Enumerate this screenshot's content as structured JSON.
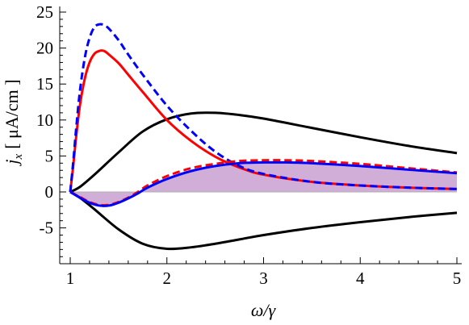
{
  "chart_data": {
    "type": "line",
    "xlabel": "ω/γ",
    "ylabel": "j_x [ μA/cm ]",
    "ylabel_parts": {
      "symbol": "j",
      "subscript": "x",
      "unit": "[ μA/cm ]"
    },
    "xlim": [
      0.9,
      5.05
    ],
    "ylim": [
      -9.5,
      25
    ],
    "x_ticks": [
      1,
      2,
      3,
      4,
      5
    ],
    "x_tick_labels": [
      "1",
      "2",
      "3",
      "4",
      "5"
    ],
    "y_ticks": [
      -5,
      0,
      5,
      10,
      15,
      20,
      25
    ],
    "y_tick_labels": [
      "-5",
      "0",
      "5",
      "10",
      "15",
      "20",
      "25"
    ],
    "grid": false,
    "legend": "none",
    "zero_line": true,
    "shaded_region": {
      "series_index": 5,
      "baseline": 0,
      "color": "#c8a0d0"
    },
    "series": [
      {
        "color": "#000000",
        "style": "solid",
        "x": [
          1,
          1.1,
          1.25,
          1.5,
          1.75,
          2.0,
          2.25,
          2.5,
          2.75,
          3.0,
          3.5,
          4.0,
          4.5,
          5.0
        ],
        "y": [
          0,
          0.7,
          2.4,
          5.5,
          8.4,
          10.1,
          10.9,
          11.0,
          10.7,
          10.2,
          8.9,
          7.6,
          6.4,
          5.4
        ]
      },
      {
        "color": "#000000",
        "style": "solid",
        "x": [
          1,
          1.1,
          1.25,
          1.5,
          1.75,
          2.0,
          2.25,
          2.5,
          2.75,
          3.0,
          3.5,
          4.0,
          4.5,
          5.0
        ],
        "y": [
          0,
          -0.8,
          -2.4,
          -5.2,
          -7.2,
          -7.9,
          -7.7,
          -7.2,
          -6.6,
          -6.0,
          -5.0,
          -4.2,
          -3.5,
          -2.9
        ]
      },
      {
        "color": "#ff0000",
        "style": "solid",
        "x": [
          1,
          1.03,
          1.06,
          1.1,
          1.15,
          1.2,
          1.25,
          1.3,
          1.35,
          1.4,
          1.5,
          1.6,
          1.75,
          2.0,
          2.25,
          2.5,
          2.75,
          3.0,
          3.5,
          4.0,
          4.5,
          5.0
        ],
        "y": [
          0,
          3.5,
          7.5,
          12.0,
          15.7,
          18.0,
          19.2,
          19.6,
          19.6,
          19.1,
          17.9,
          16.3,
          13.9,
          10.0,
          7.1,
          4.9,
          3.4,
          2.4,
          1.4,
          0.9,
          0.6,
          0.4
        ]
      },
      {
        "color": "#0000ff",
        "style": "dashed",
        "x": [
          1,
          1.03,
          1.06,
          1.1,
          1.15,
          1.2,
          1.25,
          1.3,
          1.35,
          1.4,
          1.5,
          1.6,
          1.75,
          2.0,
          2.25,
          2.5,
          2.75,
          3.0,
          3.5,
          4.0,
          4.5,
          5.0
        ],
        "y": [
          0,
          4.0,
          8.6,
          14.0,
          18.6,
          21.4,
          22.9,
          23.3,
          23.2,
          22.7,
          21.1,
          19.1,
          16.3,
          12.0,
          8.5,
          5.6,
          3.6,
          2.5,
          1.4,
          0.9,
          0.6,
          0.4
        ]
      },
      {
        "color": "#ff0000",
        "style": "dashed",
        "x": [
          1,
          1.1,
          1.2,
          1.3,
          1.4,
          1.5,
          1.6,
          1.7,
          1.8,
          2.0,
          2.25,
          2.5,
          2.75,
          3.0,
          3.25,
          3.5,
          4.0,
          4.5,
          5.0
        ],
        "y": [
          0,
          -0.7,
          -1.4,
          -1.8,
          -1.8,
          -1.4,
          -0.8,
          0.0,
          0.9,
          2.2,
          3.3,
          3.9,
          4.3,
          4.4,
          4.4,
          4.3,
          3.9,
          3.3,
          2.7
        ]
      },
      {
        "color": "#0000ff",
        "style": "solid",
        "x": [
          1,
          1.1,
          1.2,
          1.3,
          1.4,
          1.5,
          1.6,
          1.7,
          1.8,
          2.0,
          2.25,
          2.5,
          2.75,
          3.0,
          3.25,
          3.5,
          4.0,
          4.5,
          5.0
        ],
        "y": [
          0,
          -0.8,
          -1.5,
          -1.9,
          -1.9,
          -1.5,
          -0.9,
          -0.2,
          0.6,
          1.8,
          2.9,
          3.6,
          4.0,
          4.1,
          4.1,
          4.0,
          3.6,
          3.1,
          2.6
        ]
      }
    ]
  }
}
